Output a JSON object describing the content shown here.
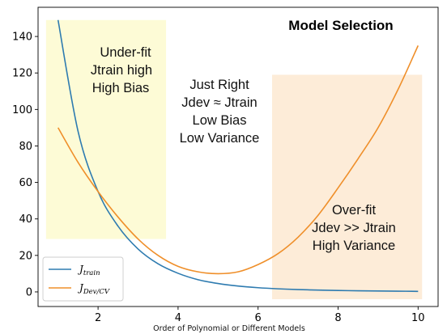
{
  "chart_data": {
    "type": "line",
    "title": "Model Selection",
    "xlabel": "Order of Polynomial or Different Models",
    "ylabel": "",
    "xlim": [
      0.5,
      10.5
    ],
    "ylim": [
      -8,
      156
    ],
    "x_ticks": [
      2,
      4,
      6,
      8,
      10
    ],
    "x_tick_labels": [
      "2",
      "4",
      "6",
      "8",
      "10"
    ],
    "y_ticks": [
      0,
      20,
      40,
      60,
      80,
      100,
      120,
      140
    ],
    "y_tick_labels": [
      "0",
      "20",
      "40",
      "60",
      "80",
      "100",
      "120",
      "140"
    ],
    "grid": false,
    "legend_position": "bottom-left",
    "series": [
      {
        "name": "J_train",
        "legend_main": "J",
        "legend_sub": "train",
        "color": "#2e7bb0",
        "x": [
          1.0,
          1.5,
          2.0,
          2.5,
          3.0,
          3.5,
          4.0,
          4.5,
          5.0,
          5.5,
          6.0,
          6.5,
          7.0,
          7.5,
          8.0,
          8.5,
          9.0,
          9.5,
          10.0
        ],
        "y": [
          149,
          88,
          55,
          36,
          23.5,
          15.4,
          10.2,
          6.7,
          4.6,
          3.2,
          2.3,
          1.7,
          1.3,
          1.0,
          0.8,
          0.6,
          0.5,
          0.4,
          0.3
        ]
      },
      {
        "name": "J_Dev/CV",
        "legend_main": "J",
        "legend_sub": "Dev/CV",
        "color": "#ef8f2a",
        "x": [
          1.0,
          1.5,
          2.0,
          2.5,
          3.0,
          3.5,
          4.0,
          4.5,
          5.0,
          5.5,
          6.0,
          6.5,
          7.0,
          7.5,
          8.0,
          8.5,
          9.0,
          9.5,
          10.0
        ],
        "y": [
          90,
          71,
          55,
          41,
          29,
          20,
          14,
          11,
          10,
          11,
          15,
          21,
          30,
          42,
          57,
          73,
          90,
          111,
          135
        ]
      }
    ],
    "regions": [
      {
        "name": "underfit",
        "x_range": [
          0.7,
          3.7
        ],
        "y_range": [
          29,
          149
        ],
        "color": "#fdfbd6",
        "lines": [
          "Under-fit",
          "Jtrain high",
          "High Bias"
        ]
      },
      {
        "name": "overfit",
        "x_range": [
          6.35,
          10.1
        ],
        "y_range": [
          -4,
          119
        ],
        "color": "#fdecd8",
        "lines": [
          "Over-fit",
          "Jdev >> Jtrain",
          "High Variance"
        ]
      }
    ],
    "annotations": [
      {
        "name": "just-right",
        "lines": [
          "Just Right",
          "Jdev ≈ Jtrain",
          "Low Bias",
          "Low Variance"
        ]
      }
    ]
  }
}
